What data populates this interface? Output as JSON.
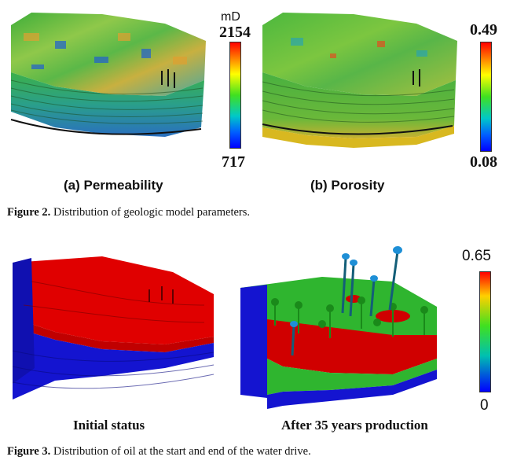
{
  "figure2": {
    "panel_a_label": "(a) Permeability",
    "panel_b_label": "(b) Porosity",
    "colorbar_a": {
      "unit": "mD",
      "max": "2154",
      "min": "717"
    },
    "colorbar_b": {
      "max": "0.49",
      "min": "0.08"
    },
    "caption_label": "Figure 2.",
    "caption_text": " Distribution of geologic model parameters."
  },
  "figure3": {
    "left_label": "Initial status",
    "right_label": "After 35 years production",
    "colorbar": {
      "max": "0.65",
      "min": "0"
    },
    "caption_label": "Figure 3.",
    "caption_text": " Distribution of oil at the start and end of the water drive."
  },
  "colors": {
    "oil_red": "#e00000",
    "water_blue": "#1414d0",
    "mid_green": "#2fb52f",
    "well_green": "#1a8a1a",
    "well_blue": "#1e8fd6"
  }
}
